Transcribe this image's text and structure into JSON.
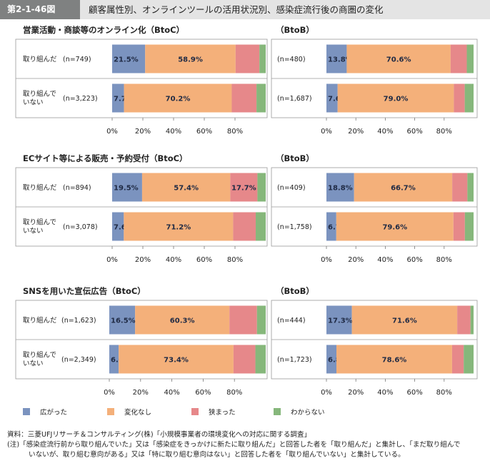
{
  "header": {
    "fig_label": "第2-1-46図",
    "title": "顧客属性別、オンラインツールの活用状況別、感染症流行後の商圏の変化"
  },
  "colors": {
    "widened": "#7b93bf",
    "unchanged": "#f4b07a",
    "narrowed": "#e6888a",
    "unknown": "#86b77b"
  },
  "chart_data": [
    {
      "type": "bar",
      "title": "営業活動・商談等のオンライン化（BtoC）",
      "categories": [
        "取り組んだ",
        "取り組んでいない"
      ],
      "n": [
        "(n=749)",
        "(n=3,223)"
      ],
      "series": [
        {
          "name": "広がった",
          "values": [
            21.5,
            7.7
          ],
          "labels": [
            "21.5%",
            "7.7%"
          ]
        },
        {
          "name": "変化なし",
          "values": [
            58.9,
            70.2
          ],
          "labels": [
            "58.9%",
            "70.2%"
          ]
        },
        {
          "name": "狭まった",
          "values": [
            15.5,
            16.1
          ],
          "labels": [
            "",
            ""
          ]
        },
        {
          "name": "わからない",
          "values": [
            4.1,
            6.0
          ],
          "labels": [
            "",
            ""
          ]
        }
      ],
      "xticks": [
        "0%",
        "20%",
        "40%",
        "60%",
        "80%"
      ],
      "xlim": [
        0,
        100
      ]
    },
    {
      "type": "bar",
      "title": "（BtoB）",
      "categories": [
        "取り組んだ",
        "取り組んでいない"
      ],
      "n": [
        "(n=480)",
        "(n=1,687)"
      ],
      "series": [
        {
          "name": "広がった",
          "values": [
            13.8,
            7.6
          ],
          "labels": [
            "13.8%",
            "7.6%"
          ]
        },
        {
          "name": "変化なし",
          "values": [
            70.6,
            79.0
          ],
          "labels": [
            "70.6%",
            "79.0%"
          ]
        },
        {
          "name": "狭まった",
          "values": [
            11.0,
            7.4
          ],
          "labels": [
            "",
            ""
          ]
        },
        {
          "name": "わからない",
          "values": [
            4.6,
            6.0
          ],
          "labels": [
            "",
            ""
          ]
        }
      ],
      "xticks": [
        "0%",
        "20%",
        "40%",
        "60%",
        "80%"
      ],
      "xlim": [
        0,
        100
      ]
    },
    {
      "type": "bar",
      "title": "ECサイト等による販売・予約受付（BtoC）",
      "categories": [
        "取り組んだ",
        "取り組んでいない"
      ],
      "n": [
        "(n=894)",
        "(n=3,078)"
      ],
      "series": [
        {
          "name": "広がった",
          "values": [
            19.5,
            7.6
          ],
          "labels": [
            "19.5%",
            "7.6%"
          ]
        },
        {
          "name": "変化なし",
          "values": [
            57.4,
            71.2
          ],
          "labels": [
            "57.4%",
            "71.2%"
          ]
        },
        {
          "name": "狭まった",
          "values": [
            17.7,
            14.7
          ],
          "labels": [
            "17.7%",
            ""
          ]
        },
        {
          "name": "わからない",
          "values": [
            5.4,
            6.5
          ],
          "labels": [
            "",
            ""
          ]
        }
      ],
      "xticks": [
        "0%",
        "20%",
        "40%",
        "60%",
        "80%"
      ],
      "xlim": [
        0,
        100
      ]
    },
    {
      "type": "bar",
      "title": "（BtoB）",
      "categories": [
        "取り組んだ",
        "取り組んでいない"
      ],
      "n": [
        "(n=409)",
        "(n=1,758)"
      ],
      "series": [
        {
          "name": "広がった",
          "values": [
            18.8,
            6.7
          ],
          "labels": [
            "18.8%",
            "6.7%"
          ]
        },
        {
          "name": "変化なし",
          "values": [
            66.7,
            79.6
          ],
          "labels": [
            "66.7%",
            "79.6%"
          ]
        },
        {
          "name": "狭まった",
          "values": [
            10.3,
            7.8
          ],
          "labels": [
            "",
            ""
          ]
        },
        {
          "name": "わからない",
          "values": [
            4.2,
            5.9
          ],
          "labels": [
            "",
            ""
          ]
        }
      ],
      "xticks": [
        "0%",
        "20%",
        "40%",
        "60%",
        "80%"
      ],
      "xlim": [
        0,
        100
      ]
    },
    {
      "type": "bar",
      "title": "SNSを用いた宣伝広告（BtoC）",
      "categories": [
        "取り組んだ",
        "取り組んでいない"
      ],
      "n": [
        "(n=1,623)",
        "(n=2,349)"
      ],
      "series": [
        {
          "name": "広がった",
          "values": [
            16.5,
            6.0
          ],
          "labels": [
            "16.5%",
            "6.0%"
          ]
        },
        {
          "name": "変化なし",
          "values": [
            60.3,
            73.4
          ],
          "labels": [
            "60.3%",
            "73.4%"
          ]
        },
        {
          "name": "狭まった",
          "values": [
            17.6,
            14.0
          ],
          "labels": [
            "",
            ""
          ]
        },
        {
          "name": "わからない",
          "values": [
            5.6,
            6.6
          ],
          "labels": [
            "",
            ""
          ]
        }
      ],
      "xticks": [
        "0%",
        "20%",
        "40%",
        "60%",
        "80%"
      ],
      "xlim": [
        0,
        100
      ]
    },
    {
      "type": "bar",
      "title": "（BtoB）",
      "categories": [
        "取り組んだ",
        "取り組んでいない"
      ],
      "n": [
        "(n=444)",
        "(n=1,723)"
      ],
      "series": [
        {
          "name": "広がった",
          "values": [
            17.3,
            6.8
          ],
          "labels": [
            "17.3%",
            "6.8%"
          ]
        },
        {
          "name": "変化なし",
          "values": [
            71.6,
            78.6
          ],
          "labels": [
            "71.6%",
            "78.6%"
          ]
        },
        {
          "name": "狭まった",
          "values": [
            9.0,
            7.9
          ],
          "labels": [
            "",
            ""
          ]
        },
        {
          "name": "わからない",
          "values": [
            2.1,
            6.7
          ],
          "labels": [
            "",
            ""
          ]
        }
      ],
      "xticks": [
        "0%",
        "20%",
        "40%",
        "60%",
        "80%"
      ],
      "xlim": [
        0,
        100
      ]
    }
  ],
  "legend": [
    "広がった",
    "変化なし",
    "狭まった",
    "わからない"
  ],
  "footer": {
    "source": "資料：三菱UFJリサーチ＆コンサルティング(株)「小規模事業者の環境変化への対応に関する調査」",
    "note1": "(注)「感染症流行前から取り組んでいた」又は「感染症をきっかけに新たに取り組んだ」と回答した者を「取り組んだ」と集計し、「まだ取り組んで",
    "note2": "いないが、取り組む意向がある」又は「特に取り組む意向はない」と回答した者を「取り組んでいない」と集計している。"
  }
}
